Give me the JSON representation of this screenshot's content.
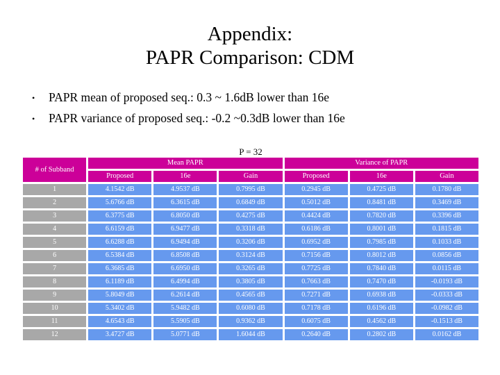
{
  "slide": {
    "title_lines": [
      "Appendix:",
      "PAPR Comparison: CDM"
    ],
    "bullet_marker": "•",
    "bullets": [
      "PAPR mean of proposed seq.: 0.3 ~ 1.6dB lower than 16e",
      "PAPR variance of proposed seq.: -0.2 ~0.3dB lower than 16e"
    ],
    "caption": "P = 32"
  },
  "colors": {
    "header_bg": "#CC0099",
    "row_label_bg": "#A8A8A8",
    "data_cell_bg": "#6699EE",
    "cell_text": "#FFFFFF",
    "background": "#FFFFFF"
  },
  "table": {
    "corner_header": "# of Subband",
    "groups": [
      {
        "label": "Mean PAPR"
      },
      {
        "label": "Variance of PAPR"
      }
    ],
    "sub_headers": [
      "Proposed",
      "16e",
      "Gain",
      "Proposed",
      "16e",
      "Gain"
    ],
    "rows": [
      {
        "subband": "1",
        "cells": [
          "4.1542 dB",
          "4.9537 dB",
          "0.7995 dB",
          "0.2945 dB",
          "0.4725 dB",
          "0.1780 dB"
        ]
      },
      {
        "subband": "2",
        "cells": [
          "5.6766 dB",
          "6.3615 dB",
          "0.6849 dB",
          "0.5012 dB",
          "0.8481 dB",
          "0.3469 dB"
        ]
      },
      {
        "subband": "3",
        "cells": [
          "6.3775 dB",
          "6.8050 dB",
          "0.4275 dB",
          "0.4424 dB",
          "0.7820 dB",
          "0.3396 dB"
        ]
      },
      {
        "subband": "4",
        "cells": [
          "6.6159 dB",
          "6.9477 dB",
          "0.3318 dB",
          "0.6186 dB",
          "0.8001 dB",
          "0.1815 dB"
        ]
      },
      {
        "subband": "5",
        "cells": [
          "6.6288 dB",
          "6.9494 dB",
          "0.3206 dB",
          "0.6952 dB",
          "0.7985 dB",
          "0.1033 dB"
        ]
      },
      {
        "subband": "6",
        "cells": [
          "6.5384 dB",
          "6.8508 dB",
          "0.3124 dB",
          "0.7156 dB",
          "0.8012 dB",
          "0.0856 dB"
        ]
      },
      {
        "subband": "7",
        "cells": [
          "6.3685 dB",
          "6.6950 dB",
          "0.3265 dB",
          "0.7725 dB",
          "0.7840 dB",
          "0.0115 dB"
        ]
      },
      {
        "subband": "8",
        "cells": [
          "6.1189 dB",
          "6.4994 dB",
          "0.3805 dB",
          "0.7663 dB",
          "0.7470 dB",
          "-0.0193 dB"
        ]
      },
      {
        "subband": "9",
        "cells": [
          "5.8049 dB",
          "6.2614 dB",
          "0.4565 dB",
          "0.7271 dB",
          "0.6938 dB",
          "-0.0333 dB"
        ]
      },
      {
        "subband": "10",
        "cells": [
          "5.3402 dB",
          "5.9482 dB",
          "0.6080 dB",
          "0.7178 dB",
          "0.6196 dB",
          "-0.0982 dB"
        ]
      },
      {
        "subband": "11",
        "cells": [
          "4.6543 dB",
          "5.5905 dB",
          "0.9362 dB",
          "0.6075 dB",
          "0.4562 dB",
          "-0.1513 dB"
        ]
      },
      {
        "subband": "12",
        "cells": [
          "3.4727 dB",
          "5.0771 dB",
          "1.6044 dB",
          "0.2640 dB",
          "0.2802 dB",
          "0.0162 dB"
        ]
      }
    ]
  }
}
